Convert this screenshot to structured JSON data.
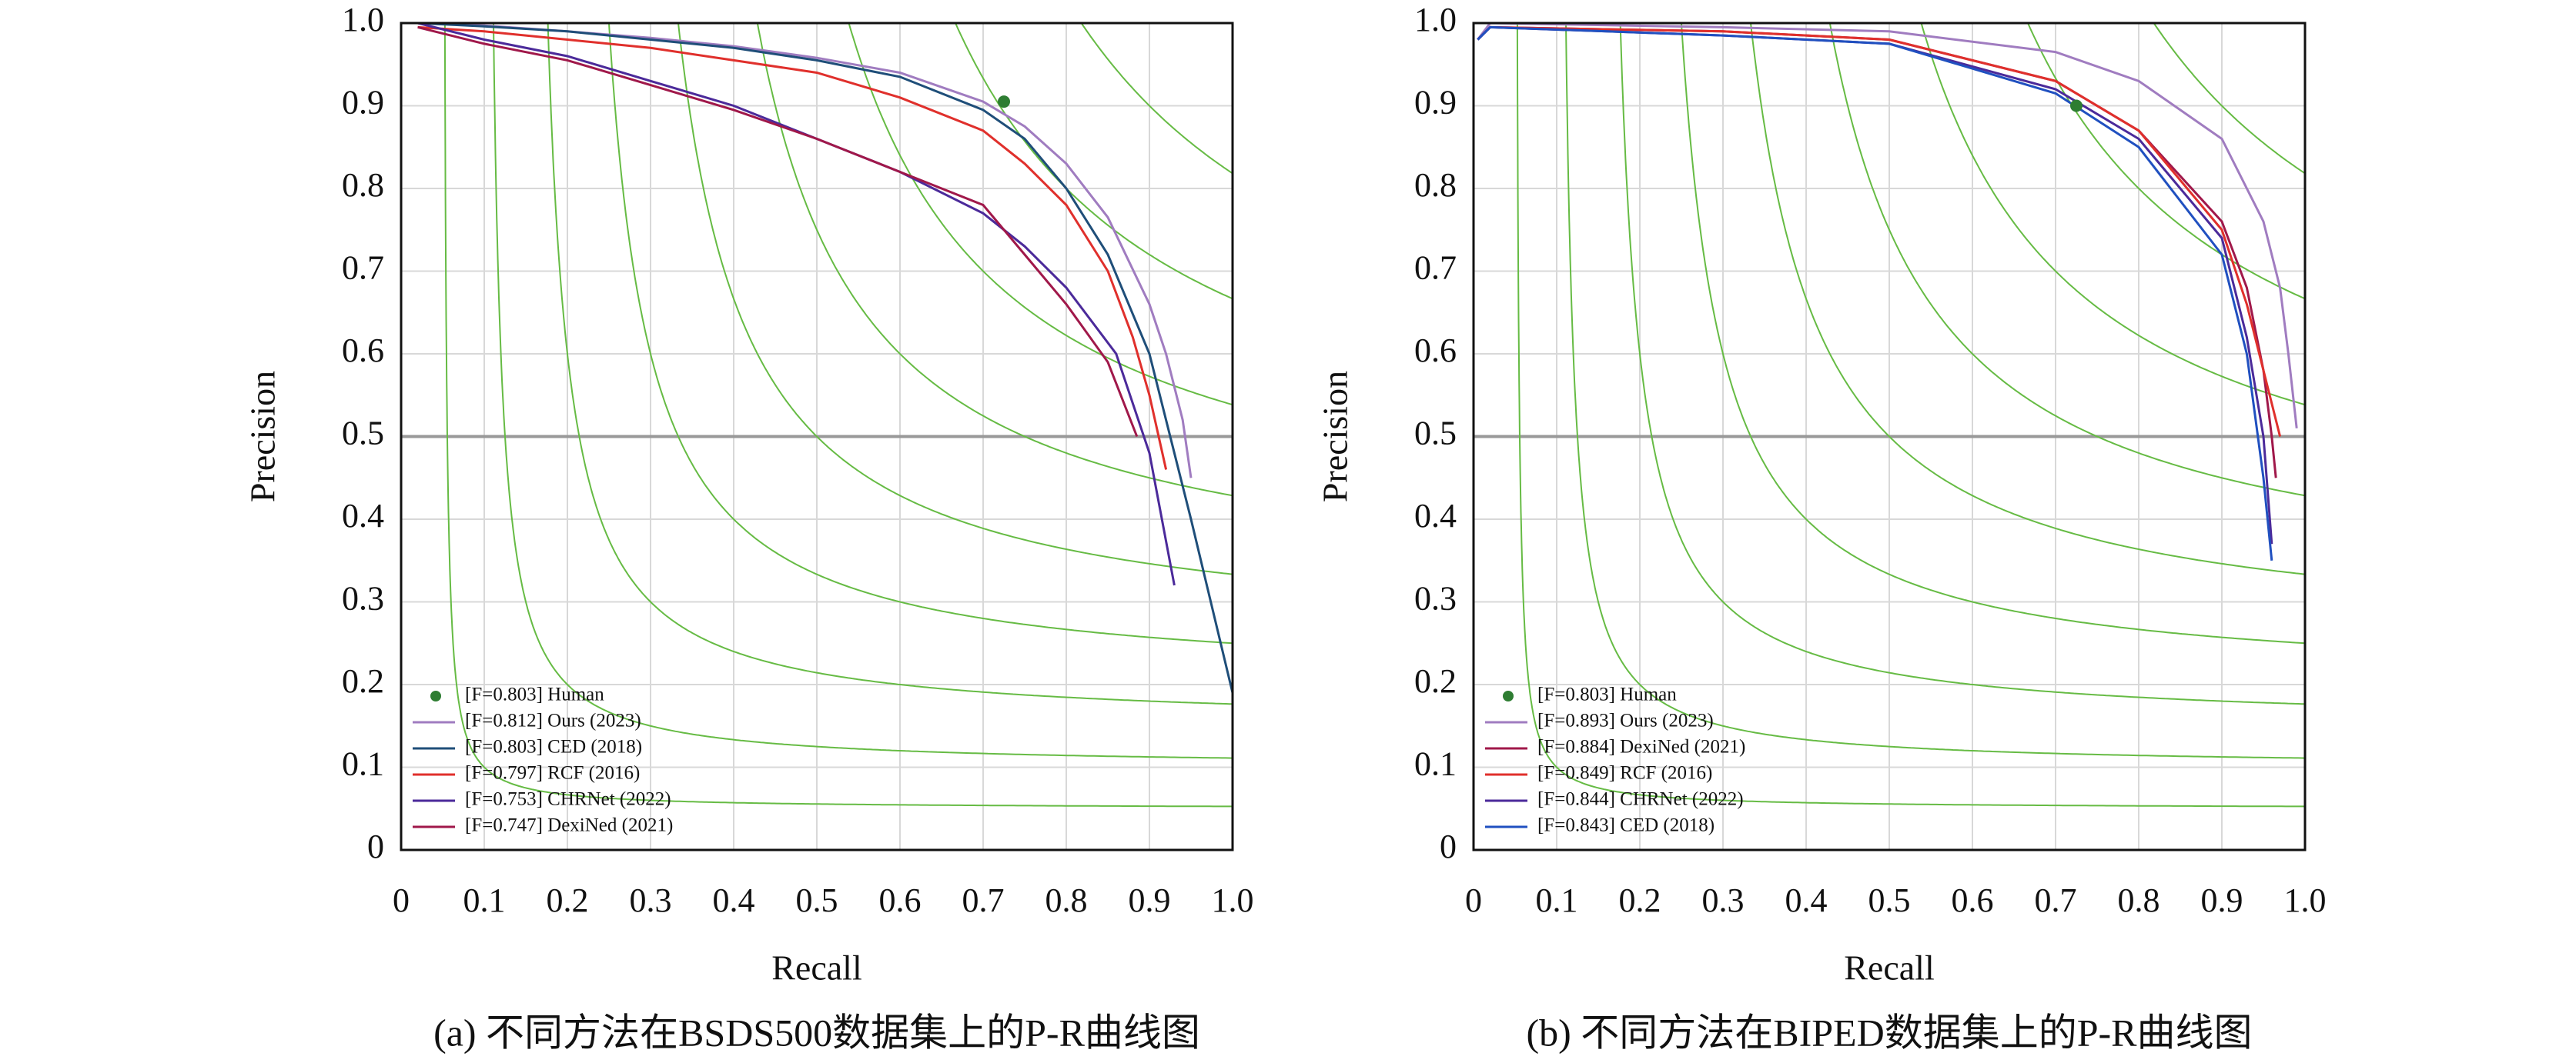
{
  "chart_data": [
    {
      "type": "line",
      "caption": "(a) 不同方法在BSDS500数据集上的P-R曲线图",
      "x_label": "Recall",
      "y_label": "Precision",
      "xlim": [
        0,
        1
      ],
      "ylim": [
        0,
        1
      ],
      "xticks": [
        0,
        0.1,
        0.2,
        0.3,
        0.4,
        0.5,
        0.6,
        0.7,
        0.8,
        0.9,
        {
          "value": 1,
          "label": "1.0"
        }
      ],
      "yticks": [
        0,
        0.1,
        0.2,
        0.3,
        0.4,
        0.5,
        0.6,
        0.7,
        0.8,
        0.9,
        {
          "value": 1,
          "label": "1.0"
        }
      ],
      "grid": true,
      "legend": "lower left",
      "reference_line": 0.5,
      "iso_f_levels": [
        0.1,
        0.2,
        0.3,
        0.4,
        0.5,
        0.6,
        0.7,
        0.8,
        0.9
      ],
      "iso_f_color": "#66bb44",
      "series": [
        {
          "name": "[F=0.803] Human",
          "color": "#2e7d32",
          "style": "marker",
          "x": [
            0.725
          ],
          "values": [
            0.905
          ]
        },
        {
          "name": "[F=0.812] Ours (2023)",
          "color": "#a07cc0",
          "x": [
            0.02,
            0.1,
            0.2,
            0.3,
            0.4,
            0.5,
            0.6,
            0.7,
            0.75,
            0.8,
            0.85,
            0.9,
            0.92,
            0.94,
            0.95
          ],
          "values": [
            1.0,
            0.997,
            0.99,
            0.982,
            0.972,
            0.958,
            0.94,
            0.905,
            0.875,
            0.83,
            0.765,
            0.66,
            0.6,
            0.52,
            0.45
          ]
        },
        {
          "name": "[F=0.803] CED (2018)",
          "color": "#1f4e79",
          "x": [
            0.02,
            0.1,
            0.2,
            0.3,
            0.4,
            0.5,
            0.6,
            0.7,
            0.75,
            0.8,
            0.85,
            0.9,
            0.95,
            1.0
          ],
          "values": [
            1.0,
            0.996,
            0.99,
            0.98,
            0.97,
            0.955,
            0.935,
            0.895,
            0.86,
            0.8,
            0.72,
            0.6,
            0.4,
            0.19
          ]
        },
        {
          "name": "[F=0.797] RCF (2016)",
          "color": "#e0302c",
          "x": [
            0.02,
            0.1,
            0.2,
            0.3,
            0.4,
            0.5,
            0.6,
            0.7,
            0.75,
            0.8,
            0.85,
            0.88,
            0.9,
            0.92
          ],
          "values": [
            0.995,
            0.99,
            0.98,
            0.97,
            0.955,
            0.94,
            0.91,
            0.87,
            0.83,
            0.78,
            0.7,
            0.62,
            0.55,
            0.46
          ]
        },
        {
          "name": "[F=0.753] CHRNet (2022)",
          "color": "#4b2a9a",
          "x": [
            0.02,
            0.1,
            0.2,
            0.3,
            0.4,
            0.5,
            0.6,
            0.7,
            0.75,
            0.8,
            0.86,
            0.9,
            0.93
          ],
          "values": [
            1.0,
            0.98,
            0.96,
            0.93,
            0.9,
            0.86,
            0.82,
            0.77,
            0.73,
            0.68,
            0.6,
            0.48,
            0.32
          ]
        },
        {
          "name": "[F=0.747] DexiNed (2021)",
          "color": "#a0184a",
          "x": [
            0.02,
            0.1,
            0.2,
            0.3,
            0.4,
            0.5,
            0.6,
            0.7,
            0.75,
            0.8,
            0.85,
            0.885
          ],
          "values": [
            0.995,
            0.975,
            0.955,
            0.925,
            0.895,
            0.86,
            0.82,
            0.78,
            0.72,
            0.66,
            0.59,
            0.5
          ]
        }
      ]
    },
    {
      "type": "line",
      "caption": "(b) 不同方法在BIPED数据集上的P-R曲线图",
      "x_label": "Recall",
      "y_label": "Precision",
      "xlim": [
        0,
        1
      ],
      "ylim": [
        0,
        1
      ],
      "xticks": [
        0,
        0.1,
        0.2,
        0.3,
        0.4,
        0.5,
        0.6,
        0.7,
        0.8,
        0.9,
        {
          "value": 1,
          "label": "1.0"
        }
      ],
      "yticks": [
        0,
        0.1,
        0.2,
        0.3,
        0.4,
        0.5,
        0.6,
        0.7,
        0.8,
        0.9,
        {
          "value": 1,
          "label": "1.0"
        }
      ],
      "grid": true,
      "legend": "lower left",
      "reference_line": 0.5,
      "iso_f_levels": [
        0.1,
        0.2,
        0.3,
        0.4,
        0.5,
        0.6,
        0.7,
        0.8,
        0.9
      ],
      "iso_f_color": "#66bb44",
      "series": [
        {
          "name": "[F=0.803] Human",
          "color": "#2e7d32",
          "style": "marker",
          "x": [
            0.725
          ],
          "values": [
            0.9
          ]
        },
        {
          "name": "[F=0.893] Ours (2023)",
          "color": "#a07cc0",
          "x": [
            0.005,
            0.02,
            0.3,
            0.5,
            0.7,
            0.8,
            0.9,
            0.95,
            0.97,
            0.98,
            0.99
          ],
          "values": [
            0.98,
            1.0,
            0.995,
            0.99,
            0.965,
            0.93,
            0.86,
            0.76,
            0.68,
            0.6,
            0.51
          ]
        },
        {
          "name": "[F=0.884] DexiNed (2021)",
          "color": "#a0184a",
          "x": [
            0.005,
            0.02,
            0.3,
            0.5,
            0.7,
            0.8,
            0.9,
            0.93,
            0.95,
            0.96,
            0.965
          ],
          "values": [
            0.98,
            0.995,
            0.99,
            0.98,
            0.93,
            0.87,
            0.76,
            0.68,
            0.58,
            0.5,
            0.45
          ]
        },
        {
          "name": "[F=0.849] RCF (2016)",
          "color": "#e0302c",
          "x": [
            0.005,
            0.02,
            0.3,
            0.5,
            0.7,
            0.8,
            0.9,
            0.93,
            0.95,
            0.965,
            0.97
          ],
          "values": [
            0.98,
            0.995,
            0.99,
            0.98,
            0.93,
            0.87,
            0.75,
            0.66,
            0.58,
            0.52,
            0.5
          ]
        },
        {
          "name": "[F=0.844] CHRNet (2022)",
          "color": "#4b2a9a",
          "x": [
            0.005,
            0.02,
            0.3,
            0.5,
            0.7,
            0.8,
            0.9,
            0.93,
            0.95,
            0.96
          ],
          "values": [
            0.98,
            0.995,
            0.985,
            0.975,
            0.92,
            0.86,
            0.74,
            0.62,
            0.5,
            0.37
          ]
        },
        {
          "name": "[F=0.843] CED (2018)",
          "color": "#2050c0",
          "x": [
            0.005,
            0.02,
            0.3,
            0.5,
            0.7,
            0.8,
            0.9,
            0.93,
            0.95,
            0.96
          ],
          "values": [
            0.98,
            0.995,
            0.985,
            0.975,
            0.915,
            0.85,
            0.72,
            0.6,
            0.45,
            0.35
          ]
        }
      ]
    }
  ]
}
